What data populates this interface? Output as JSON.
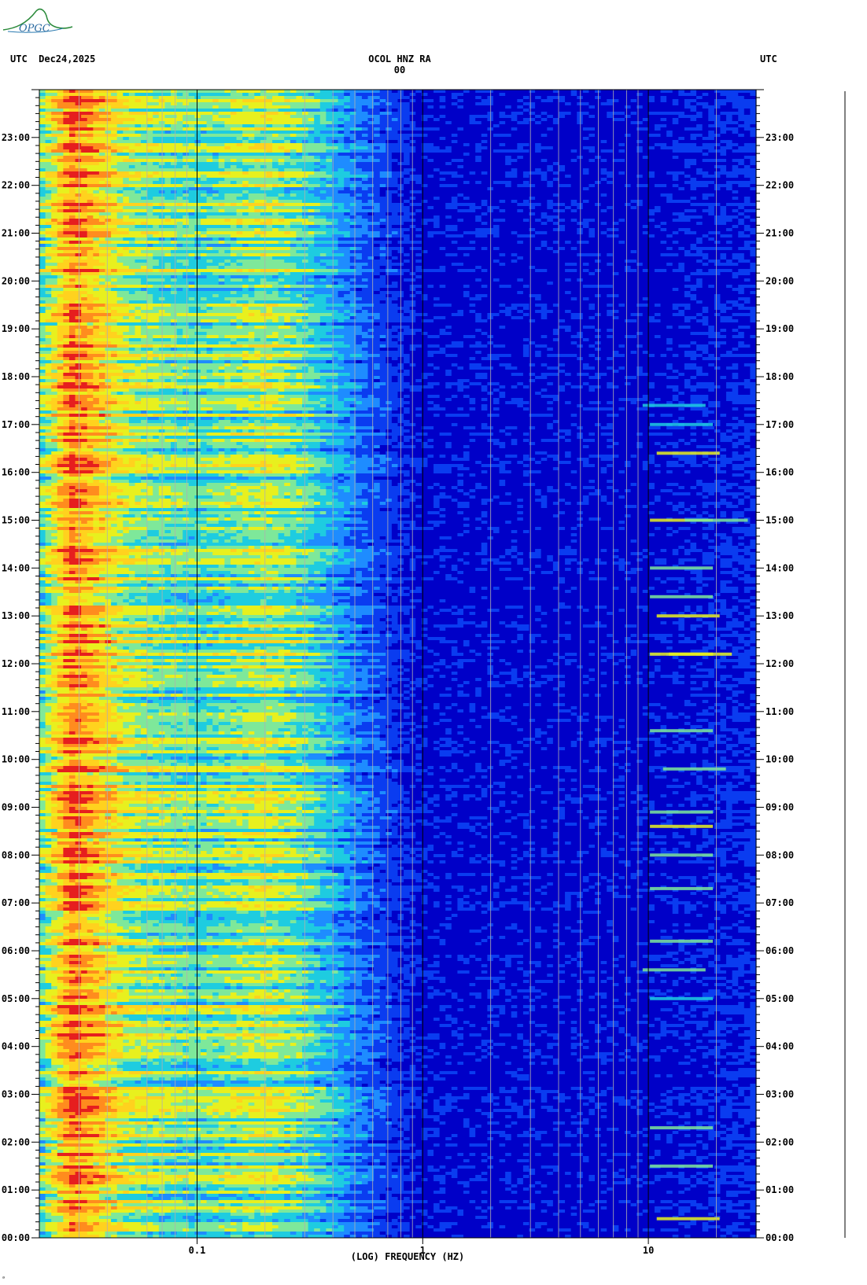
{
  "header": {
    "left": "UTC  Dec24,2025",
    "center": "OCOL HNZ RA 00",
    "right": "UTC"
  },
  "logo": {
    "text": "OPGC",
    "color": "#2a8a3a"
  },
  "corner_mark": "ᵃ",
  "chart_data": {
    "type": "heatmap",
    "title": "OCOL HNZ RA 00",
    "xlabel": "(LOG) FREQUENCY (HZ)",
    "ylabel": "",
    "x_scale": "log",
    "xlim": [
      0.02,
      30
    ],
    "x_ticks": [
      0.1,
      1,
      10
    ],
    "x_tick_labels": [
      "0.1",
      "1",
      "10"
    ],
    "ylim_hours": [
      0,
      24
    ],
    "y_tick_labels": [
      "00:00",
      "01:00",
      "02:00",
      "03:00",
      "04:00",
      "05:00",
      "06:00",
      "07:00",
      "08:00",
      "09:00",
      "10:00",
      "11:00",
      "12:00",
      "13:00",
      "14:00",
      "15:00",
      "16:00",
      "17:00",
      "18:00",
      "19:00",
      "20:00",
      "21:00",
      "22:00",
      "23:00"
    ],
    "colormap": [
      "#0000c8",
      "#0a3cf0",
      "#1e8cff",
      "#1ecce0",
      "#7ee89a",
      "#e8f01e",
      "#ffd21e",
      "#ff8c1e",
      "#e61e1e"
    ],
    "power_profile": {
      "description_freq_hz": [
        0.02,
        0.028,
        0.05,
        0.1,
        0.2,
        0.3,
        0.5,
        0.8,
        1,
        10,
        30
      ],
      "level": [
        0.45,
        0.85,
        0.55,
        0.45,
        0.55,
        0.45,
        0.25,
        0.12,
        0.08,
        0.07,
        0.12
      ]
    },
    "grid_freq_hz": [
      0.03,
      0.04,
      0.06,
      0.07,
      0.08,
      0.09,
      0.2,
      0.3,
      0.4,
      0.5,
      0.6,
      0.7,
      0.8,
      0.9,
      2,
      3,
      4,
      5,
      6,
      7,
      8,
      9,
      20
    ],
    "bold_grid_freq_hz": [
      0.1,
      1,
      10
    ],
    "events": [
      {
        "hour": 0.4,
        "freq_hz": 15,
        "level": 0.6
      },
      {
        "hour": 1.5,
        "freq_hz": 14,
        "level": 0.45
      },
      {
        "hour": 2.3,
        "freq_hz": 14,
        "level": 0.45
      },
      {
        "hour": 5.0,
        "freq_hz": 14,
        "level": 0.4
      },
      {
        "hour": 5.6,
        "freq_hz": 13,
        "level": 0.45
      },
      {
        "hour": 6.2,
        "freq_hz": 14,
        "level": 0.5
      },
      {
        "hour": 7.3,
        "freq_hz": 14,
        "level": 0.55
      },
      {
        "hour": 8.0,
        "freq_hz": 14,
        "level": 0.55
      },
      {
        "hour": 8.6,
        "freq_hz": 14,
        "level": 0.6
      },
      {
        "hour": 8.9,
        "freq_hz": 14,
        "level": 0.55
      },
      {
        "hour": 9.8,
        "freq_hz": 16,
        "level": 0.5
      },
      {
        "hour": 10.6,
        "freq_hz": 14,
        "level": 0.5
      },
      {
        "hour": 12.2,
        "freq_hz": 14,
        "level": 0.65
      },
      {
        "hour": 12.2,
        "freq_hz": 17,
        "level": 0.6
      },
      {
        "hour": 13.0,
        "freq_hz": 15,
        "level": 0.65
      },
      {
        "hour": 13.4,
        "freq_hz": 14,
        "level": 0.5
      },
      {
        "hour": 14.0,
        "freq_hz": 14,
        "level": 0.5
      },
      {
        "hour": 15.0,
        "freq_hz": 14,
        "level": 0.65
      },
      {
        "hour": 15.0,
        "freq_hz": 20,
        "level": 0.55
      },
      {
        "hour": 16.4,
        "freq_hz": 15,
        "level": 0.6
      },
      {
        "hour": 17.0,
        "freq_hz": 14,
        "level": 0.4
      },
      {
        "hour": 17.4,
        "freq_hz": 13,
        "level": 0.4
      }
    ]
  }
}
